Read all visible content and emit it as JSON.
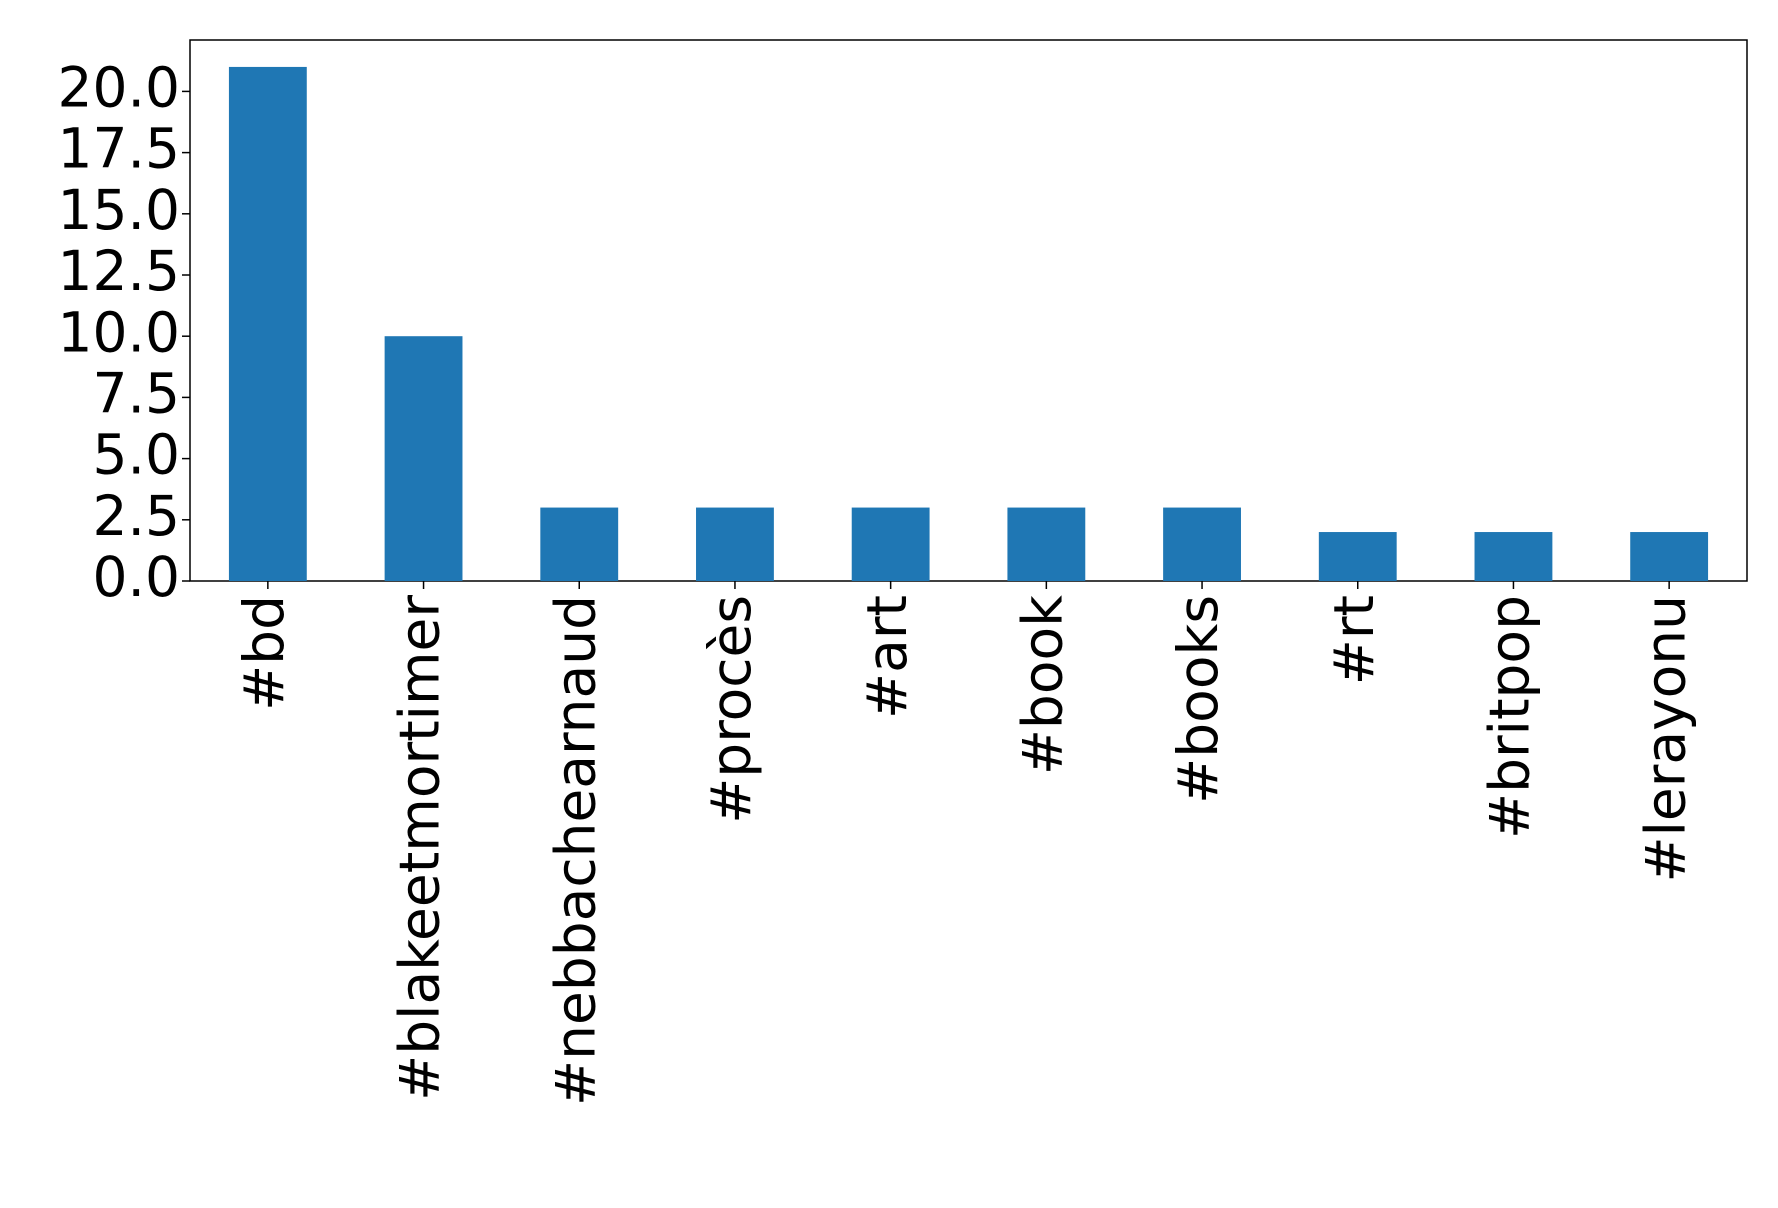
{
  "chart_data": {
    "type": "bar",
    "categories": [
      "#bd",
      "#blakeetmortimer",
      "#nebbachearnaud",
      "#procès",
      "#art",
      "#book",
      "#books",
      "#rt",
      "#britpop",
      "#lerayonu"
    ],
    "values": [
      21,
      10,
      3,
      3,
      3,
      3,
      3,
      2,
      2,
      2
    ],
    "color": "#1f77b4",
    "ylim": [
      0,
      22.1
    ],
    "yticks": [
      {
        "value": 0,
        "label": "0.0"
      },
      2.5,
      {
        "value": 5,
        "label": "5.0"
      },
      7.5,
      {
        "value": 10,
        "label": "10.0"
      },
      12.5,
      {
        "value": 15,
        "label": "15.0"
      },
      17.5,
      {
        "value": 20,
        "label": "20.0"
      }
    ],
    "grid": false
  }
}
